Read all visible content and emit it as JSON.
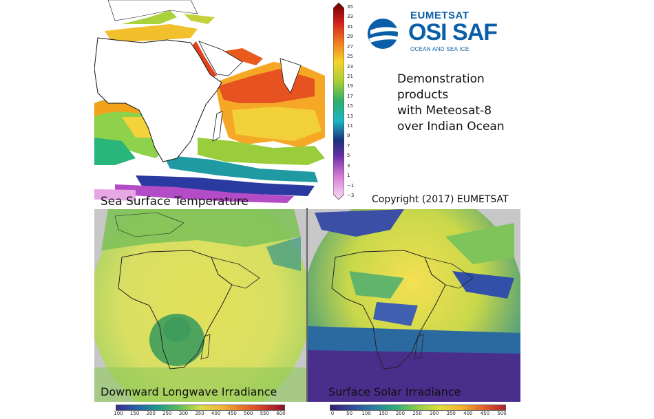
{
  "logo": {
    "word1": "EUMETSAT",
    "word2": "OSI SAF",
    "word3": "OCEAN AND SEA ICE",
    "color": "#0b5ea8"
  },
  "description": {
    "lines": [
      "Demonstration",
      "products",
      "with Meteosat-8",
      "over Indian Ocean"
    ]
  },
  "copyright": "Copyright (2017) EUMETSAT",
  "sst": {
    "caption": "Sea Surface Temperature",
    "colorbar_ticks": [
      "35",
      "33",
      "31",
      "29",
      "27",
      "25",
      "23",
      "21",
      "19",
      "17",
      "15",
      "13",
      "11",
      "9",
      "7",
      "5",
      "3",
      "1",
      "−1",
      "−3"
    ]
  },
  "dli": {
    "caption": "Downward Longwave Irradiance",
    "colorbar_ticks": [
      "100",
      "150",
      "200",
      "250",
      "300",
      "350",
      "400",
      "450",
      "500",
      "550",
      "600"
    ]
  },
  "ssi": {
    "caption": "Surface Solar Irradiance",
    "colorbar_ticks": [
      "0",
      "50",
      "100",
      "150",
      "200",
      "250",
      "300",
      "350",
      "400",
      "450",
      "500"
    ]
  }
}
